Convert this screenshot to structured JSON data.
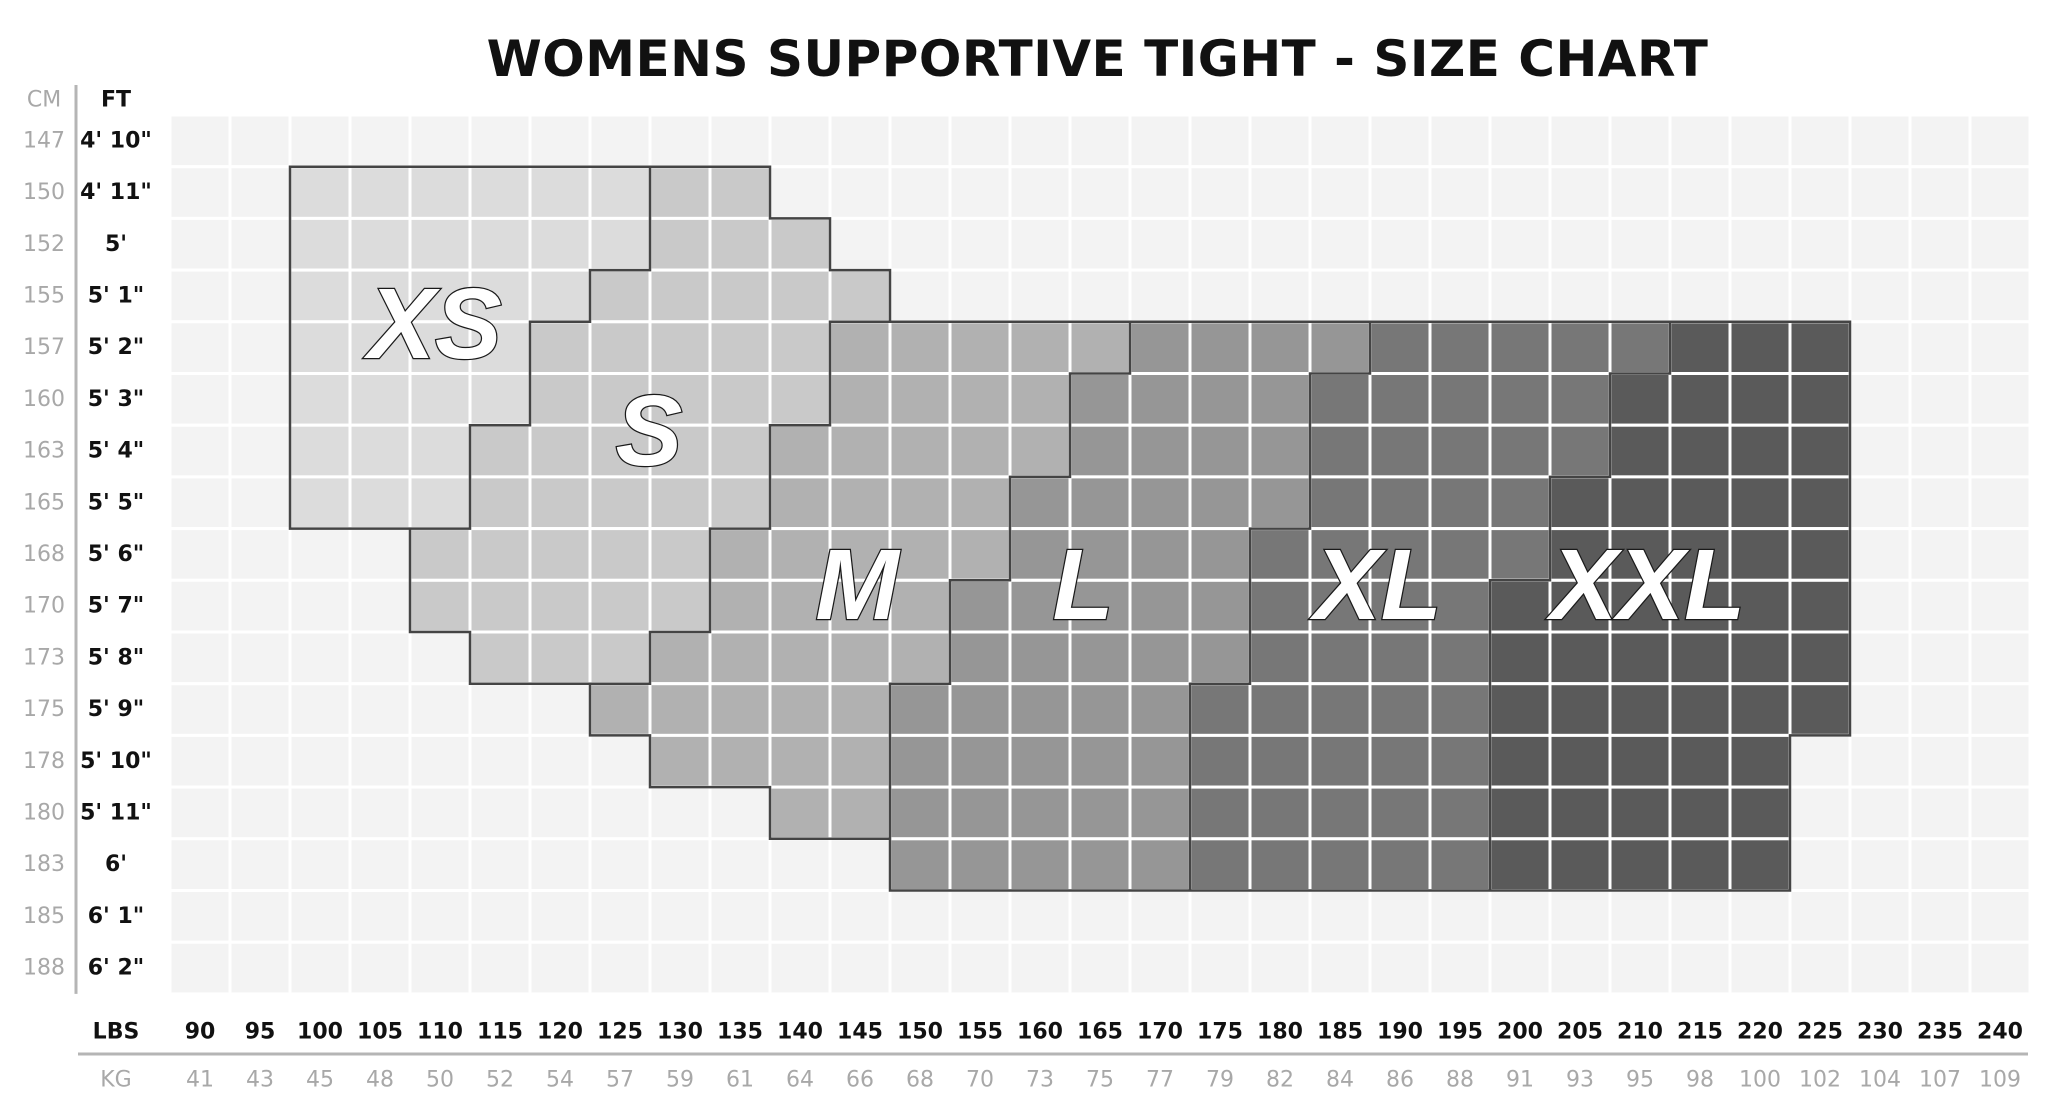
{
  "chart_data": {
    "type": "heatmap",
    "title": "WOMENS SUPPORTIVE TIGHT - SIZE CHART",
    "row_headers": {
      "cm": "CM",
      "ft": "FT"
    },
    "column_headers": {
      "lbs": "LBS",
      "kg": "KG"
    },
    "grid": true,
    "rows": [
      {
        "cm": "147",
        "ft": "4' 10\""
      },
      {
        "cm": "150",
        "ft": "4' 11\""
      },
      {
        "cm": "152",
        "ft": "5'"
      },
      {
        "cm": "155",
        "ft": "5' 1\""
      },
      {
        "cm": "157",
        "ft": "5' 2\""
      },
      {
        "cm": "160",
        "ft": "5' 3\""
      },
      {
        "cm": "163",
        "ft": "5' 4\""
      },
      {
        "cm": "165",
        "ft": "5' 5\""
      },
      {
        "cm": "168",
        "ft": "5' 6\""
      },
      {
        "cm": "170",
        "ft": "5' 7\""
      },
      {
        "cm": "173",
        "ft": "5' 8\""
      },
      {
        "cm": "175",
        "ft": "5' 9\""
      },
      {
        "cm": "178",
        "ft": "5' 10\""
      },
      {
        "cm": "180",
        "ft": "5' 11\""
      },
      {
        "cm": "183",
        "ft": "6'"
      },
      {
        "cm": "185",
        "ft": "6' 1\""
      },
      {
        "cm": "188",
        "ft": "6' 2\""
      }
    ],
    "columns": [
      {
        "lbs": "90",
        "kg": "41"
      },
      {
        "lbs": "95",
        "kg": "43"
      },
      {
        "lbs": "100",
        "kg": "45"
      },
      {
        "lbs": "105",
        "kg": "48"
      },
      {
        "lbs": "110",
        "kg": "50"
      },
      {
        "lbs": "115",
        "kg": "52"
      },
      {
        "lbs": "120",
        "kg": "54"
      },
      {
        "lbs": "125",
        "kg": "57"
      },
      {
        "lbs": "130",
        "kg": "59"
      },
      {
        "lbs": "135",
        "kg": "61"
      },
      {
        "lbs": "140",
        "kg": "64"
      },
      {
        "lbs": "145",
        "kg": "66"
      },
      {
        "lbs": "150",
        "kg": "68"
      },
      {
        "lbs": "155",
        "kg": "70"
      },
      {
        "lbs": "160",
        "kg": "73"
      },
      {
        "lbs": "165",
        "kg": "75"
      },
      {
        "lbs": "170",
        "kg": "77"
      },
      {
        "lbs": "175",
        "kg": "79"
      },
      {
        "lbs": "180",
        "kg": "82"
      },
      {
        "lbs": "185",
        "kg": "84"
      },
      {
        "lbs": "190",
        "kg": "86"
      },
      {
        "lbs": "195",
        "kg": "88"
      },
      {
        "lbs": "200",
        "kg": "91"
      },
      {
        "lbs": "205",
        "kg": "93"
      },
      {
        "lbs": "210",
        "kg": "95"
      },
      {
        "lbs": "215",
        "kg": "98"
      },
      {
        "lbs": "220",
        "kg": "100"
      },
      {
        "lbs": "225",
        "kg": "102"
      },
      {
        "lbs": "230",
        "kg": "104"
      },
      {
        "lbs": "235",
        "kg": "107"
      },
      {
        "lbs": "240",
        "kg": "109"
      }
    ],
    "empty_color": "#f3f3f3",
    "sizes": [
      {
        "label": "XS",
        "color": "#dcdcdc",
        "ranges": [
          {
            "cm": "150",
            "lbs": [
              100,
              125
            ]
          },
          {
            "cm": "152",
            "lbs": [
              100,
              125
            ]
          },
          {
            "cm": "155",
            "lbs": [
              100,
              120
            ]
          },
          {
            "cm": "157",
            "lbs": [
              100,
              115
            ]
          },
          {
            "cm": "160",
            "lbs": [
              100,
              115
            ]
          },
          {
            "cm": "163",
            "lbs": [
              100,
              110
            ]
          },
          {
            "cm": "165",
            "lbs": [
              100,
              110
            ]
          }
        ]
      },
      {
        "label": "S",
        "color": "#c9c9c9",
        "ranges": [
          {
            "cm": "150",
            "lbs": [
              130,
              135
            ]
          },
          {
            "cm": "152",
            "lbs": [
              130,
              140
            ]
          },
          {
            "cm": "155",
            "lbs": [
              125,
              145
            ]
          },
          {
            "cm": "157",
            "lbs": [
              120,
              140
            ]
          },
          {
            "cm": "160",
            "lbs": [
              120,
              140
            ]
          },
          {
            "cm": "163",
            "lbs": [
              115,
              135
            ]
          },
          {
            "cm": "165",
            "lbs": [
              115,
              135
            ]
          },
          {
            "cm": "168",
            "lbs": [
              110,
              130
            ]
          },
          {
            "cm": "170",
            "lbs": [
              110,
              130
            ]
          },
          {
            "cm": "173",
            "lbs": [
              115,
              125
            ]
          }
        ]
      },
      {
        "label": "M",
        "color": "#b1b1b1",
        "ranges": [
          {
            "cm": "157",
            "lbs": [
              145,
              165
            ]
          },
          {
            "cm": "160",
            "lbs": [
              145,
              160
            ]
          },
          {
            "cm": "163",
            "lbs": [
              140,
              160
            ]
          },
          {
            "cm": "165",
            "lbs": [
              140,
              155
            ]
          },
          {
            "cm": "168",
            "lbs": [
              135,
              155
            ]
          },
          {
            "cm": "170",
            "lbs": [
              135,
              150
            ]
          },
          {
            "cm": "173",
            "lbs": [
              130,
              150
            ]
          },
          {
            "cm": "175",
            "lbs": [
              125,
              145
            ]
          },
          {
            "cm": "178",
            "lbs": [
              130,
              145
            ]
          },
          {
            "cm": "180",
            "lbs": [
              140,
              145
            ]
          }
        ]
      },
      {
        "label": "L",
        "color": "#969696",
        "ranges": [
          {
            "cm": "157",
            "lbs": [
              170,
              185
            ]
          },
          {
            "cm": "160",
            "lbs": [
              165,
              180
            ]
          },
          {
            "cm": "163",
            "lbs": [
              165,
              180
            ]
          },
          {
            "cm": "165",
            "lbs": [
              160,
              180
            ]
          },
          {
            "cm": "168",
            "lbs": [
              160,
              175
            ]
          },
          {
            "cm": "170",
            "lbs": [
              155,
              175
            ]
          },
          {
            "cm": "173",
            "lbs": [
              155,
              175
            ]
          },
          {
            "cm": "175",
            "lbs": [
              150,
              170
            ]
          },
          {
            "cm": "178",
            "lbs": [
              150,
              170
            ]
          },
          {
            "cm": "180",
            "lbs": [
              150,
              170
            ]
          },
          {
            "cm": "183",
            "lbs": [
              150,
              170
            ]
          }
        ]
      },
      {
        "label": "XL",
        "color": "#777777",
        "ranges": [
          {
            "cm": "157",
            "lbs": [
              190,
              210
            ]
          },
          {
            "cm": "160",
            "lbs": [
              185,
              205
            ]
          },
          {
            "cm": "163",
            "lbs": [
              185,
              205
            ]
          },
          {
            "cm": "165",
            "lbs": [
              185,
              200
            ]
          },
          {
            "cm": "168",
            "lbs": [
              180,
              200
            ]
          },
          {
            "cm": "170",
            "lbs": [
              180,
              195
            ]
          },
          {
            "cm": "173",
            "lbs": [
              180,
              195
            ]
          },
          {
            "cm": "175",
            "lbs": [
              175,
              195
            ]
          },
          {
            "cm": "178",
            "lbs": [
              175,
              195
            ]
          },
          {
            "cm": "180",
            "lbs": [
              175,
              195
            ]
          },
          {
            "cm": "183",
            "lbs": [
              175,
              195
            ]
          }
        ]
      },
      {
        "label": "XXL",
        "color": "#5a5a5a",
        "ranges": [
          {
            "cm": "157",
            "lbs": [
              215,
              225
            ]
          },
          {
            "cm": "160",
            "lbs": [
              210,
              225
            ]
          },
          {
            "cm": "163",
            "lbs": [
              210,
              225
            ]
          },
          {
            "cm": "165",
            "lbs": [
              205,
              225
            ]
          },
          {
            "cm": "168",
            "lbs": [
              205,
              225
            ]
          },
          {
            "cm": "170",
            "lbs": [
              200,
              225
            ]
          },
          {
            "cm": "173",
            "lbs": [
              200,
              225
            ]
          },
          {
            "cm": "175",
            "lbs": [
              200,
              225
            ]
          },
          {
            "cm": "178",
            "lbs": [
              200,
              220
            ]
          },
          {
            "cm": "180",
            "lbs": [
              200,
              220
            ]
          },
          {
            "cm": "183",
            "lbs": [
              200,
              220
            ]
          }
        ]
      }
    ]
  }
}
